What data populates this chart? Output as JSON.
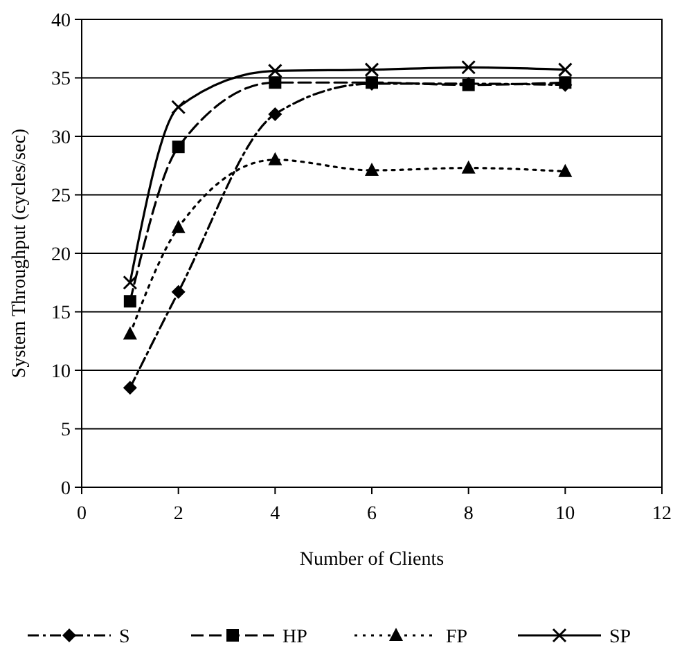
{
  "chart_data": {
    "type": "line",
    "xlabel": "Number of Clients",
    "ylabel": "System Throughput (cycles/sec)",
    "x": [
      1,
      2,
      4,
      6,
      8,
      10
    ],
    "xlim": [
      0,
      12
    ],
    "xticks": [
      0,
      2,
      4,
      6,
      8,
      10,
      12
    ],
    "ylim": [
      0,
      40
    ],
    "yticks": [
      0,
      5,
      10,
      15,
      20,
      25,
      30,
      35,
      40
    ],
    "grid": "y",
    "legend": "bottom",
    "series": [
      {
        "name": "S",
        "color": "#000000",
        "marker": "diamond",
        "line_style": "dashdot",
        "values": [
          8.5,
          16.7,
          31.9,
          34.5,
          34.5,
          34.4
        ]
      },
      {
        "name": "HP",
        "color": "#000000",
        "marker": "square",
        "line_style": "dashed",
        "values": [
          15.9,
          29.1,
          34.6,
          34.6,
          34.4,
          34.6
        ]
      },
      {
        "name": "FP",
        "color": "#000000",
        "marker": "triangle",
        "line_style": "dotted",
        "values": [
          13.1,
          22.2,
          28.0,
          27.1,
          27.3,
          27.0
        ]
      },
      {
        "name": "SP",
        "color": "#000000",
        "marker": "cross",
        "line_style": "solid",
        "values": [
          17.5,
          32.5,
          35.6,
          35.7,
          35.9,
          35.7
        ]
      }
    ]
  }
}
